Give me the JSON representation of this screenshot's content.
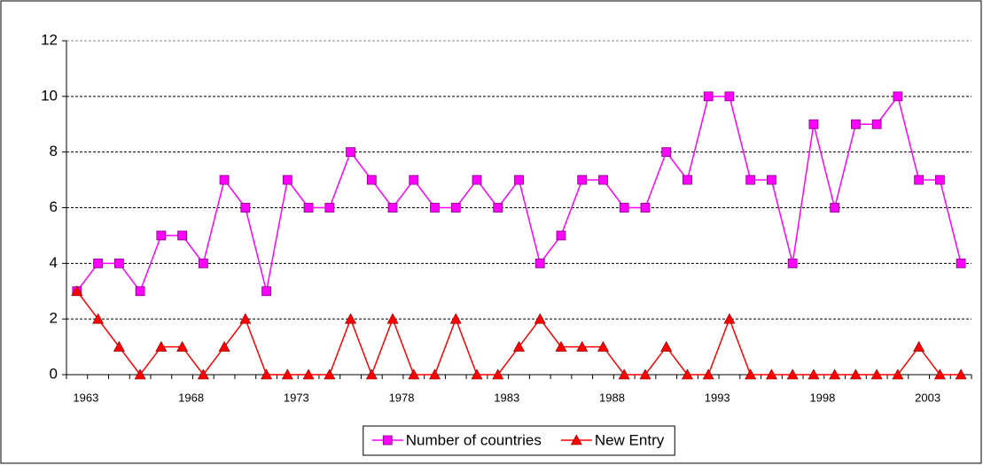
{
  "chart_data": {
    "type": "line",
    "categories": [
      "1963",
      null,
      null,
      null,
      null,
      "1968",
      null,
      null,
      null,
      null,
      "1973",
      null,
      null,
      null,
      null,
      "1978",
      null,
      null,
      null,
      null,
      "1983",
      null,
      null,
      null,
      null,
      "1988",
      null,
      null,
      null,
      null,
      "1993",
      null,
      null,
      null,
      null,
      "1998",
      null,
      null,
      null,
      null,
      "2003",
      null,
      null
    ],
    "series": [
      {
        "name": "Number of countries",
        "color": "#ff00ff",
        "marker": "square",
        "values": [
          3,
          4,
          4,
          3,
          5,
          5,
          4,
          7,
          6,
          3,
          7,
          6,
          6,
          8,
          7,
          6,
          7,
          6,
          6,
          7,
          6,
          7,
          4,
          5,
          7,
          7,
          6,
          6,
          8,
          7,
          10,
          10,
          7,
          7,
          4,
          9,
          6,
          9,
          9,
          10,
          7,
          7,
          4
        ]
      },
      {
        "name": "New Entry",
        "color": "#ff0000",
        "marker": "triangle",
        "values": [
          3,
          2,
          1,
          0,
          1,
          1,
          0,
          1,
          2,
          0,
          0,
          0,
          0,
          2,
          0,
          2,
          0,
          0,
          2,
          0,
          0,
          1,
          2,
          1,
          1,
          1,
          0,
          0,
          1,
          0,
          0,
          2,
          0,
          0,
          0,
          0,
          0,
          0,
          0,
          0,
          1,
          0,
          0
        ]
      }
    ],
    "ylim": [
      0,
      12
    ],
    "yticks": [
      0,
      2,
      4,
      6,
      8,
      10,
      12
    ],
    "grid": true,
    "legend": "bottom"
  }
}
